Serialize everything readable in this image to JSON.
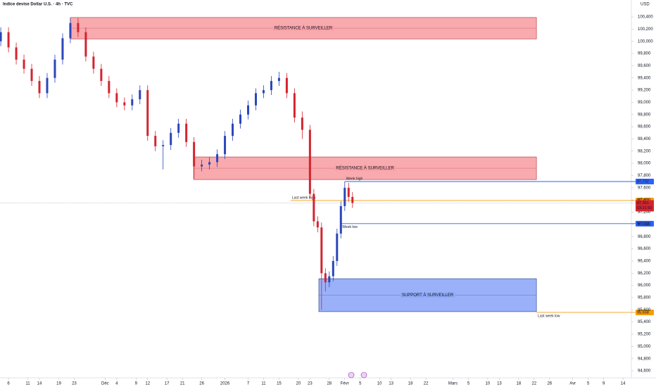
{
  "chart_data": {
    "type": "candlestick",
    "title": "Indice devise Dollar U.S. · 4h · TVC",
    "currency": "USD",
    "x": [
      4,
      6,
      8,
      10,
      12,
      14,
      16,
      18,
      20,
      22,
      24,
      26,
      28,
      30,
      32,
      34,
      36,
      38,
      40,
      42,
      44,
      46,
      48,
      50,
      52,
      54,
      56,
      58,
      60,
      62,
      64,
      66,
      68,
      70,
      72,
      74,
      76,
      78,
      80,
      82,
      84,
      85,
      86,
      87,
      88,
      89,
      90,
      91,
      92,
      93,
      94,
      95
    ],
    "open": [
      100000,
      100150,
      99900,
      99700,
      99550,
      99350,
      99150,
      99400,
      99700,
      100050,
      100300,
      100150,
      99750,
      99550,
      99350,
      99150,
      99000,
      98950,
      99050,
      99200,
      98450,
      98280,
      98300,
      98500,
      98650,
      98350,
      97950,
      97980,
      98020,
      98150,
      98450,
      98650,
      98800,
      98950,
      99150,
      99200,
      99350,
      99400,
      99150,
      98750,
      98550,
      97500,
      97050,
      96950,
      96200,
      96050,
      96150,
      96400,
      96850,
      97300,
      97600,
      97450
    ],
    "high": [
      100230,
      100230,
      99980,
      99780,
      99630,
      99430,
      99480,
      99780,
      100130,
      100380,
      100380,
      100230,
      99830,
      99630,
      99430,
      99230,
      99080,
      99130,
      99280,
      99280,
      98530,
      98380,
      98580,
      98730,
      98730,
      98430,
      98060,
      98100,
      98230,
      98530,
      98730,
      98880,
      99030,
      99230,
      99280,
      99430,
      99500,
      99480,
      99230,
      98850,
      98630,
      97580,
      97130,
      97030,
      96280,
      96230,
      96480,
      96930,
      97380,
      97702,
      97680,
      97530
    ],
    "low": [
      99920,
      99820,
      99620,
      99470,
      99270,
      99070,
      99070,
      99320,
      99620,
      99970,
      100070,
      99670,
      99470,
      99270,
      99070,
      98920,
      98870,
      98870,
      98970,
      98370,
      98200,
      97900,
      98220,
      98420,
      98270,
      97750,
      97870,
      97900,
      97940,
      98070,
      98370,
      98570,
      98720,
      98870,
      99070,
      99120,
      99270,
      99070,
      98670,
      98400,
      97420,
      96970,
      96870,
      95600,
      95900,
      95970,
      96070,
      96320,
      96770,
      97220,
      97370,
      97271
    ],
    "close": [
      100150,
      99900,
      99700,
      99550,
      99350,
      99150,
      99400,
      99700,
      100050,
      100300,
      100150,
      99750,
      99550,
      99350,
      99150,
      99000,
      98950,
      99050,
      99200,
      98450,
      98280,
      98300,
      98500,
      98650,
      98350,
      97950,
      97980,
      98020,
      98150,
      98450,
      98650,
      98800,
      98950,
      99150,
      99200,
      99350,
      99400,
      99150,
      98750,
      98550,
      97500,
      97050,
      96950,
      96200,
      96050,
      96150,
      96400,
      96850,
      97300,
      97600,
      97450,
      97351
    ],
    "up_color": "#2a46b8",
    "down_color": "#d3242f",
    "xlim": [
      3.8,
      166.8
    ],
    "ylim": [
      94508,
      100677
    ],
    "grid": false,
    "xticks": [
      {
        "value": 6,
        "label": "6"
      },
      {
        "value": 11,
        "label": "11"
      },
      {
        "value": 14,
        "label": "14"
      },
      {
        "value": 19,
        "label": "19"
      },
      {
        "value": 23,
        "label": "23"
      },
      {
        "value": 31,
        "label": "Déc"
      },
      {
        "value": 34,
        "label": "4"
      },
      {
        "value": 39,
        "label": "9"
      },
      {
        "value": 42,
        "label": "12"
      },
      {
        "value": 47,
        "label": "17"
      },
      {
        "value": 51,
        "label": "21"
      },
      {
        "value": 56,
        "label": "26"
      },
      {
        "value": 62,
        "label": "2026"
      },
      {
        "value": 68,
        "label": "7"
      },
      {
        "value": 72,
        "label": "11"
      },
      {
        "value": 76,
        "label": "15"
      },
      {
        "value": 81,
        "label": "20"
      },
      {
        "value": 84,
        "label": "23"
      },
      {
        "value": 89,
        "label": "28"
      },
      {
        "value": 93,
        "label": "Févr"
      },
      {
        "value": 97,
        "label": "5"
      },
      {
        "value": 102,
        "label": "10"
      },
      {
        "value": 105,
        "label": "13"
      },
      {
        "value": 110,
        "label": "18"
      },
      {
        "value": 114,
        "label": "22"
      },
      {
        "value": 121,
        "label": "Mars"
      },
      {
        "value": 125,
        "label": "5"
      },
      {
        "value": 130,
        "label": "10"
      },
      {
        "value": 133,
        "label": "13"
      },
      {
        "value": 138,
        "label": "18"
      },
      {
        "value": 142,
        "label": "22"
      },
      {
        "value": 146,
        "label": "26"
      },
      {
        "value": 152,
        "label": "Avr"
      },
      {
        "value": 156,
        "label": "5"
      },
      {
        "value": 160,
        "label": "9"
      },
      {
        "value": 165,
        "label": "14"
      }
    ],
    "yticks": [
      {
        "value": 100400,
        "label": "100,400"
      },
      {
        "value": 100200,
        "label": "100,200"
      },
      {
        "value": 100000,
        "label": "100,000"
      },
      {
        "value": 99800,
        "label": "99,800"
      },
      {
        "value": 99600,
        "label": "99,600"
      },
      {
        "value": 99400,
        "label": "99,400"
      },
      {
        "value": 99200,
        "label": "99,200"
      },
      {
        "value": 99000,
        "label": "99,000"
      },
      {
        "value": 98800,
        "label": "98,800"
      },
      {
        "value": 98600,
        "label": "98,600"
      },
      {
        "value": 98400,
        "label": "98,400"
      },
      {
        "value": 98200,
        "label": "98,200"
      },
      {
        "value": 98000,
        "label": "98,000"
      },
      {
        "value": 97800,
        "label": "97,800"
      },
      {
        "value": 97600,
        "label": "97,600"
      },
      {
        "value": 97400,
        "label": "97,400"
      },
      {
        "value": 97200,
        "label": "97,200"
      },
      {
        "value": 97000,
        "label": "97,000"
      },
      {
        "value": 96800,
        "label": "96,800"
      },
      {
        "value": 96600,
        "label": "96,600"
      },
      {
        "value": 96400,
        "label": "96,400"
      },
      {
        "value": 96200,
        "label": "96,200"
      },
      {
        "value": 96000,
        "label": "96,000"
      },
      {
        "value": 95800,
        "label": "95,800"
      },
      {
        "value": 95600,
        "label": "95,600"
      },
      {
        "value": 95400,
        "label": "95,400"
      },
      {
        "value": 95200,
        "label": "95,200"
      },
      {
        "value": 95000,
        "label": "95,000"
      },
      {
        "value": 94800,
        "label": "94,800"
      },
      {
        "value": 94600,
        "label": "94,600"
      }
    ],
    "zones": [
      {
        "label": "RÉSISTANCE À SURVEILLER",
        "low": 100040,
        "high": 100390,
        "x0": 22,
        "x1": 142.6,
        "color": "#f7a1a5",
        "border": "#b02a30"
      },
      {
        "label": "RÉSISTANCE À SURVEILLER",
        "low": 97735,
        "high": 98105,
        "x0": 53.9,
        "x1": 142.6,
        "color": "#f7a1a5",
        "border": "#b02a30"
      },
      {
        "label": "SUPPORT À SURVEILLER",
        "low": 95570,
        "high": 96110,
        "x0": 86.3,
        "x1": 142.6,
        "color": "#8fa9f8",
        "border": "#1f3a8a"
      }
    ],
    "levels": [
      {
        "name": "Week high",
        "value": 97702,
        "label": "97,702",
        "color": "#2962ff",
        "x0": 93
      },
      {
        "name": "Last week high",
        "value": 97391,
        "label": "97,391",
        "color": "#f59d0b",
        "x0": 79
      },
      {
        "name": "Week low",
        "value": 97012,
        "label": "97,012",
        "color": "#2962ff",
        "x0": 92
      },
      {
        "name": "Last week low",
        "value": 95558,
        "label": "95,558",
        "color": "#f59d0b",
        "x0": 142.6
      }
    ],
    "last_price": {
      "value": 97351,
      "label": "97,351",
      "countdown": "03:21:50",
      "color": "#d3242f"
    }
  }
}
